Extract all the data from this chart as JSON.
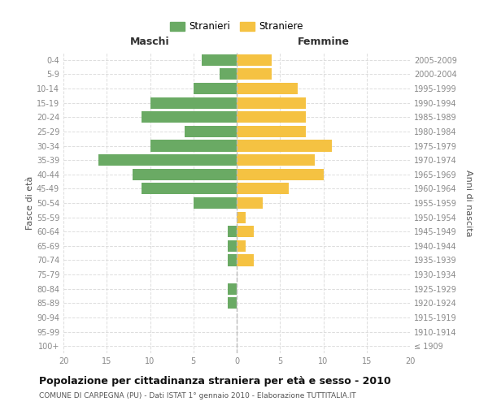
{
  "age_groups": [
    "100+",
    "95-99",
    "90-94",
    "85-89",
    "80-84",
    "75-79",
    "70-74",
    "65-69",
    "60-64",
    "55-59",
    "50-54",
    "45-49",
    "40-44",
    "35-39",
    "30-34",
    "25-29",
    "20-24",
    "15-19",
    "10-14",
    "5-9",
    "0-4"
  ],
  "birth_years": [
    "≤ 1909",
    "1910-1914",
    "1915-1919",
    "1920-1924",
    "1925-1929",
    "1930-1934",
    "1935-1939",
    "1940-1944",
    "1945-1949",
    "1950-1954",
    "1955-1959",
    "1960-1964",
    "1965-1969",
    "1970-1974",
    "1975-1979",
    "1980-1984",
    "1985-1989",
    "1990-1994",
    "1995-1999",
    "2000-2004",
    "2005-2009"
  ],
  "maschi": [
    0,
    0,
    0,
    1,
    1,
    0,
    1,
    1,
    1,
    0,
    5,
    11,
    12,
    16,
    10,
    6,
    11,
    10,
    5,
    2,
    4
  ],
  "femmine": [
    0,
    0,
    0,
    0,
    0,
    0,
    2,
    1,
    2,
    1,
    3,
    6,
    10,
    9,
    11,
    8,
    8,
    8,
    7,
    4,
    4
  ],
  "color_maschi": "#6aaa64",
  "color_femmine": "#f5c242",
  "title": "Popolazione per cittadinanza straniera per età e sesso - 2010",
  "subtitle": "COMUNE DI CARPEGNA (PU) - Dati ISTAT 1° gennaio 2010 - Elaborazione TUTTITALIA.IT",
  "ylabel_left": "Fasce di età",
  "ylabel_right": "Anni di nascita",
  "xlabel_maschi": "Maschi",
  "xlabel_femmine": "Femmine",
  "legend_maschi": "Stranieri",
  "legend_femmine": "Straniere",
  "xlim": 20,
  "bg_color": "#ffffff",
  "grid_color": "#dddddd",
  "axis_label_color": "#555555",
  "tick_label_color": "#888888",
  "bar_height": 0.8
}
